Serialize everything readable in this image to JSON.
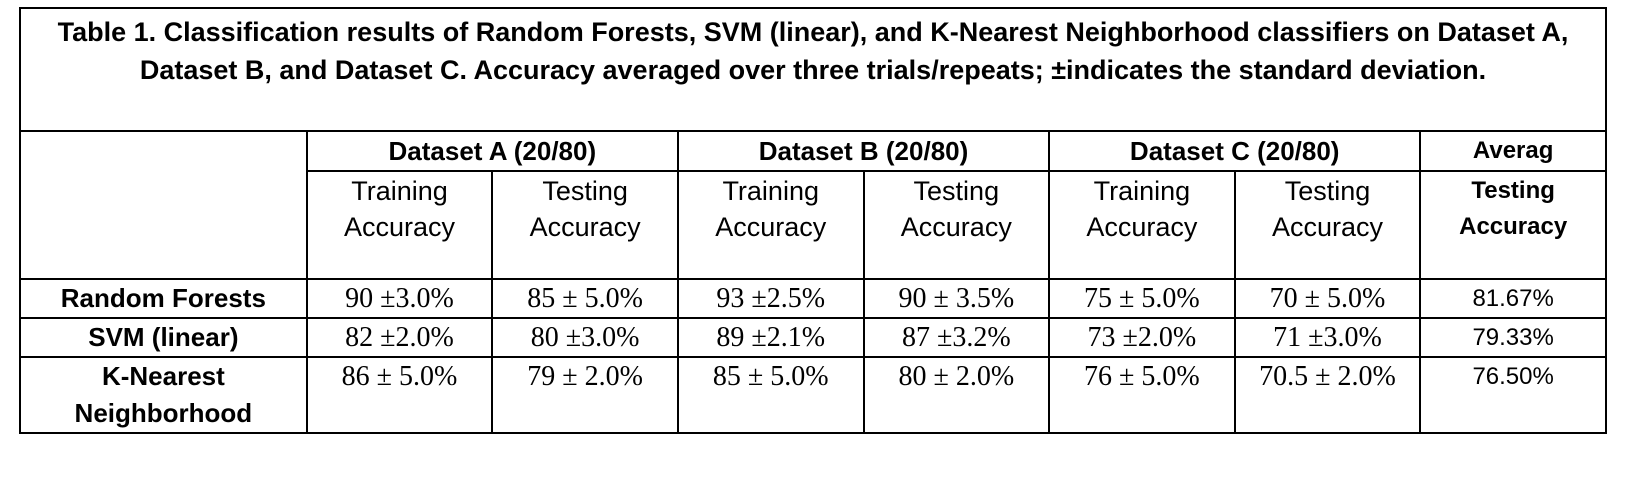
{
  "table": {
    "caption": "Table 1. Classification results of Random Forests, SVM (linear), and K-Nearest Neighborhood classifiers on Dataset A, Dataset B, and Dataset C. Accuracy averaged over three trials/repeats; ±indicates the standard deviation.",
    "groups": [
      "Dataset A (20/80)",
      "Dataset B (20/80)",
      "Dataset C (20/80)"
    ],
    "average_header": "Averag",
    "sub_headers": {
      "training_line1": "Training",
      "testing_line1": "Testing",
      "line2": "Accuracy"
    },
    "average_sub_header": {
      "line1": "Testing",
      "line2": "Accuracy"
    },
    "rows": [
      {
        "label": "Random Forests",
        "values": [
          "90 ±3.0%",
          "85 ± 5.0%",
          "93 ±2.5%",
          "90 ± 3.5%",
          "75 ± 5.0%",
          "70 ± 5.0%"
        ],
        "average": "81.67%"
      },
      {
        "label": "SVM (linear)",
        "values": [
          "82 ±2.0%",
          "80 ±3.0%",
          "89 ±2.1%",
          "87 ±3.2%",
          "73 ±2.0%",
          "71 ±3.0%"
        ],
        "average": "79.33%"
      },
      {
        "label_line1": "K-Nearest",
        "label_line2": "Neighborhood",
        "values": [
          "86 ± 5.0%",
          "79 ± 2.0%",
          "85 ± 5.0%",
          "80 ± 2.0%",
          "76 ± 5.0%",
          "70.5 ± 2.0%"
        ],
        "average": "76.50%"
      }
    ]
  }
}
